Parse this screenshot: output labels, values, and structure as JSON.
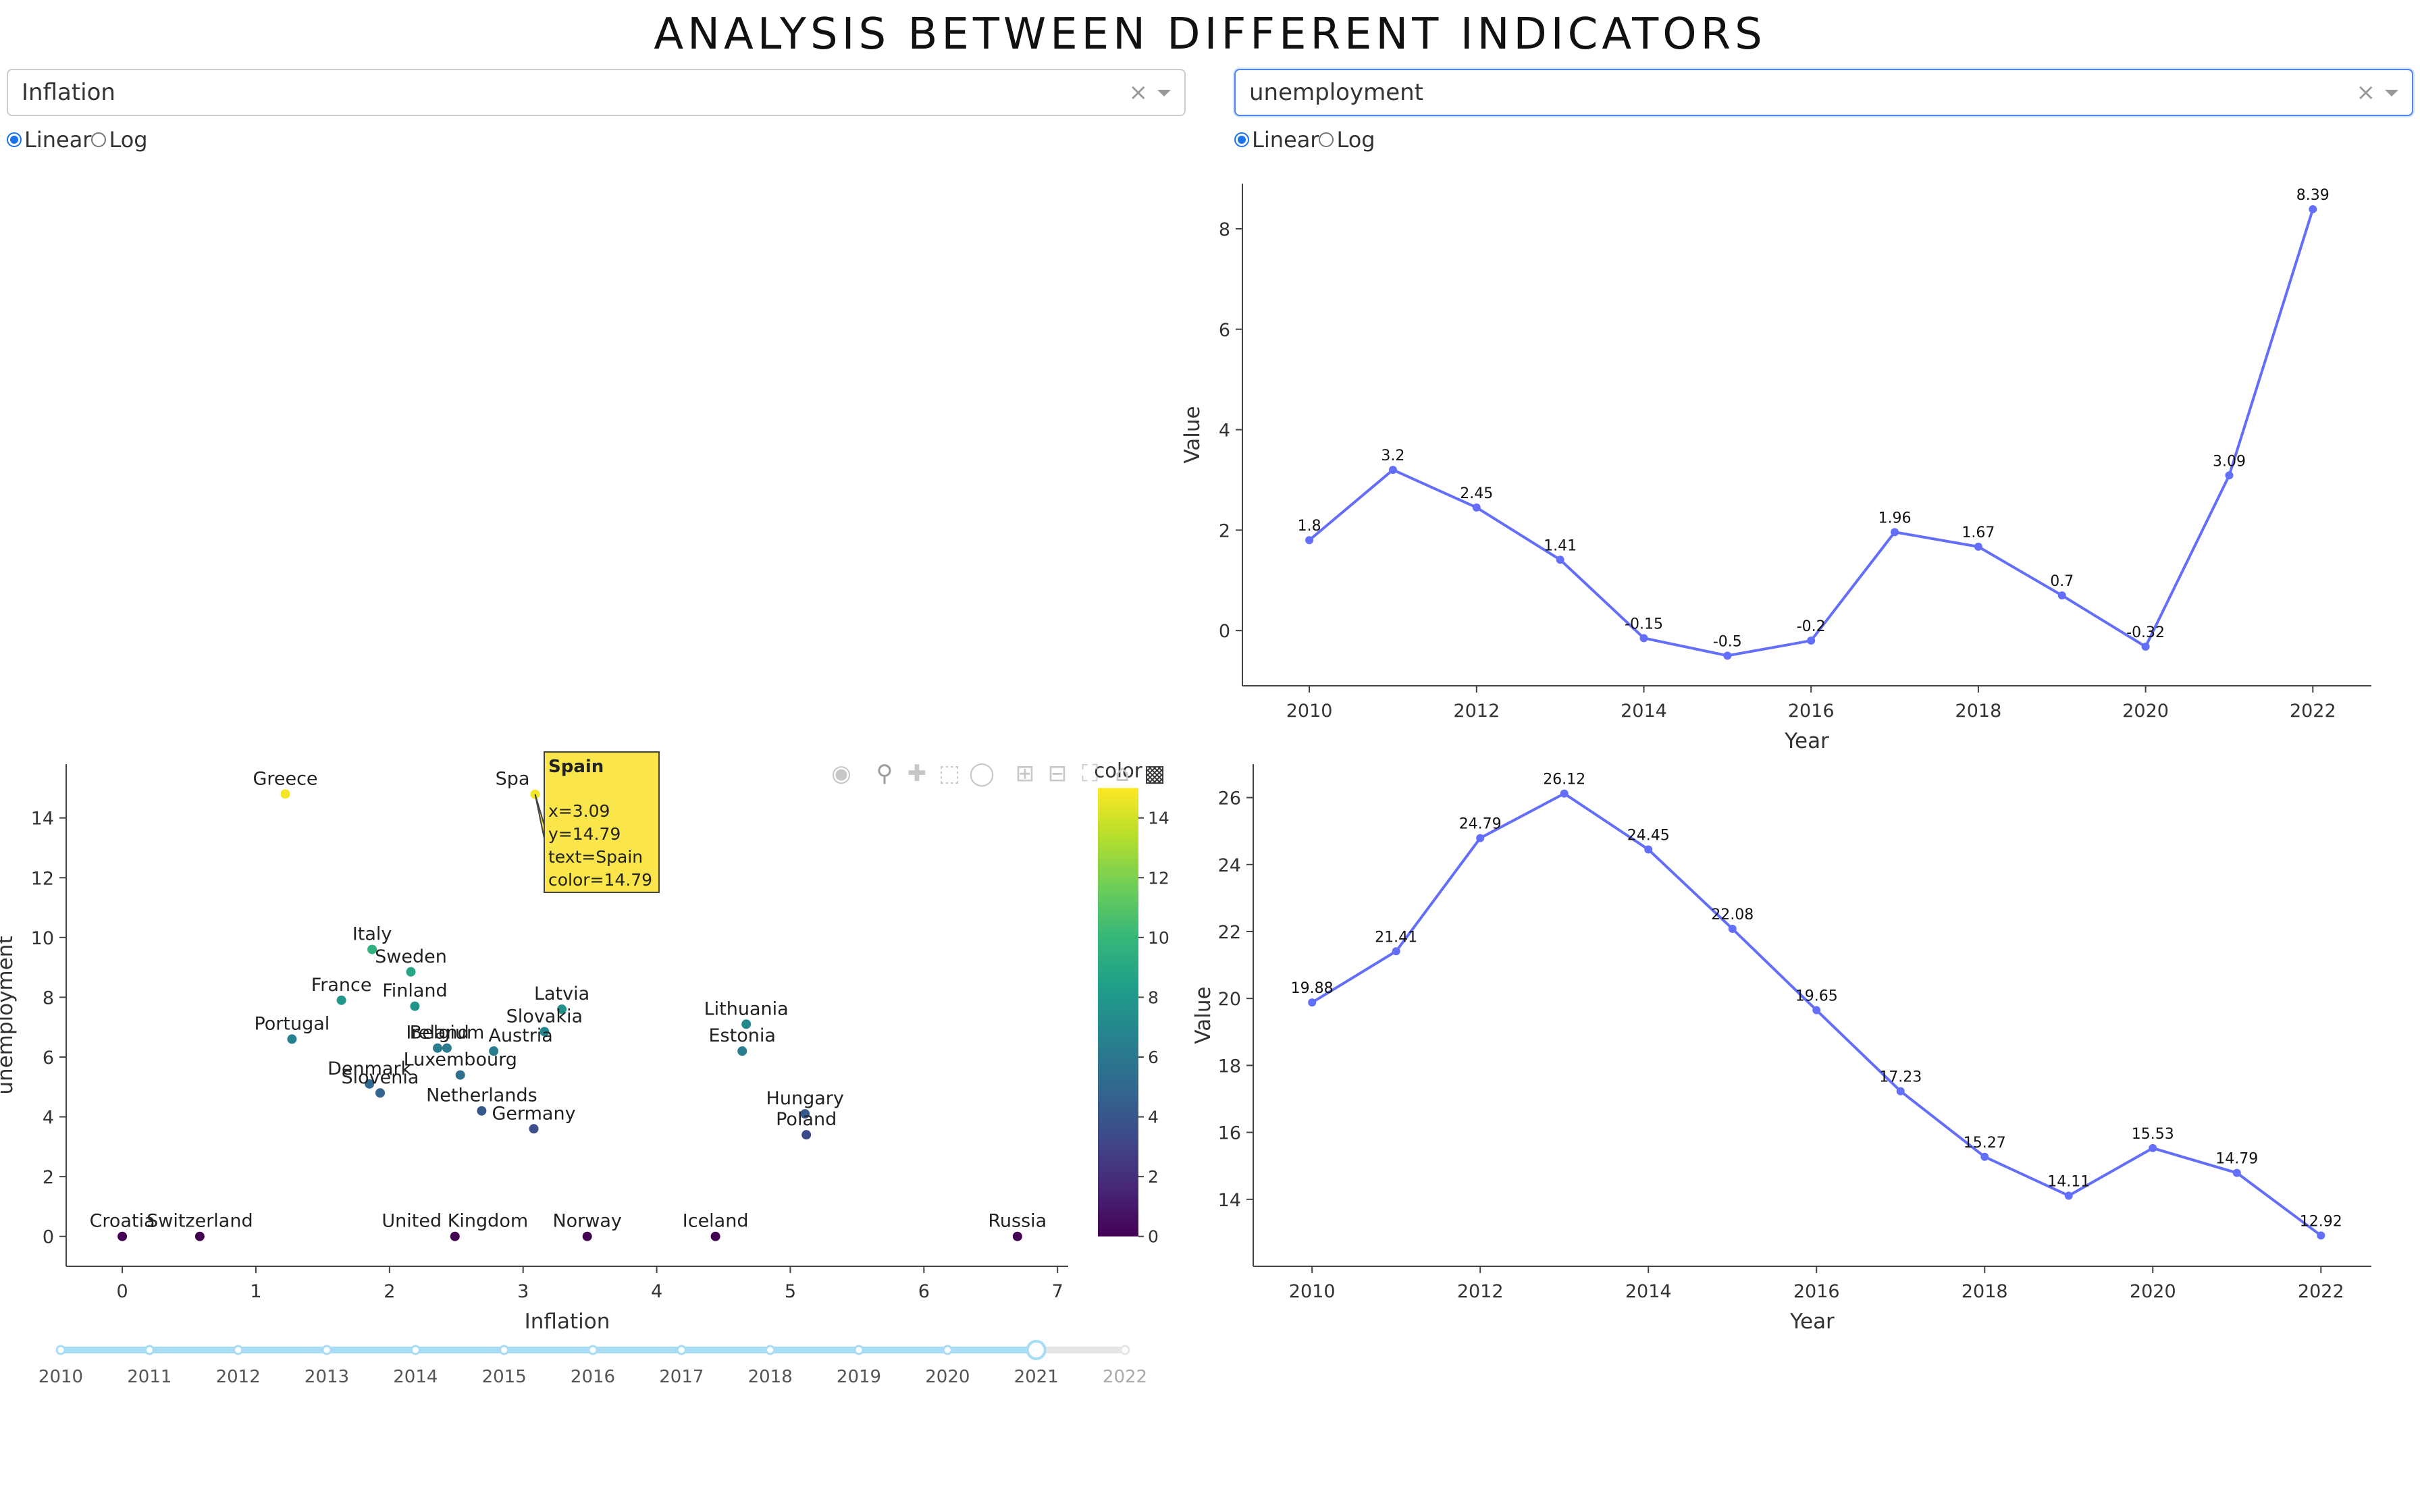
{
  "header": {
    "title": "ANALYSIS BETWEEN DIFFERENT INDICATORS"
  },
  "left_dropdown": {
    "value": "Inflation",
    "clear": "×"
  },
  "right_dropdown": {
    "value": "unemployment",
    "clear": "×"
  },
  "left_scale": {
    "options": [
      "Linear",
      "Log"
    ],
    "selected": "Linear"
  },
  "right_scale": {
    "options": [
      "Linear",
      "Log"
    ],
    "selected": "Linear"
  },
  "modebar": {
    "icons": [
      "camera-icon",
      "zoom-icon",
      "pan-icon",
      "box-select-icon",
      "lasso-icon",
      "zoom-in-icon",
      "zoom-out-icon",
      "autoscale-icon",
      "reset-axes-icon",
      "plotly-logo-icon"
    ]
  },
  "slider": {
    "years": [
      "2010",
      "2011",
      "2012",
      "2013",
      "2014",
      "2015",
      "2016",
      "2017",
      "2018",
      "2019",
      "2020",
      "2021",
      "2022"
    ],
    "selected": "2021"
  },
  "tooltip": {
    "title": "Spain",
    "lines": [
      "x=3.09",
      "y=14.79",
      "text=Spain",
      "color=14.79"
    ]
  },
  "colors": {
    "line": "#636efa",
    "tooltip_bg": "#fae54a",
    "accent": "#1a73e8"
  },
  "chart_data": [
    {
      "id": "scatter",
      "type": "scatter",
      "xlabel": "Inflation",
      "ylabel": "unemployment",
      "xlim": [
        -0.42,
        7.08
      ],
      "ylim": [
        -1.0,
        15.8
      ],
      "xticks": [
        0,
        1,
        2,
        3,
        4,
        5,
        6,
        7
      ],
      "yticks": [
        0,
        2,
        4,
        6,
        8,
        10,
        12,
        14
      ],
      "colorbar": {
        "title": "color",
        "min": 0,
        "max": 15,
        "ticks": [
          0,
          2,
          4,
          6,
          8,
          10,
          12,
          14
        ]
      },
      "points": [
        {
          "name": "Greece",
          "x": 1.22,
          "y": 14.8
        },
        {
          "name": "Spain",
          "x": 3.09,
          "y": 14.79
        },
        {
          "name": "Italy",
          "x": 1.87,
          "y": 9.6
        },
        {
          "name": "Sweden",
          "x": 2.16,
          "y": 8.85
        },
        {
          "name": "France",
          "x": 1.64,
          "y": 7.9
        },
        {
          "name": "Finland",
          "x": 2.19,
          "y": 7.7
        },
        {
          "name": "Latvia",
          "x": 3.29,
          "y": 7.6
        },
        {
          "name": "Portugal",
          "x": 1.27,
          "y": 6.6
        },
        {
          "name": "Slovakia",
          "x": 3.16,
          "y": 6.85
        },
        {
          "name": "Ireland",
          "x": 2.36,
          "y": 6.3
        },
        {
          "name": "Belgium",
          "x": 2.43,
          "y": 6.3
        },
        {
          "name": "Austria",
          "x": 2.78,
          "y": 6.2
        },
        {
          "name": "Lithuania",
          "x": 4.67,
          "y": 7.1
        },
        {
          "name": "Estonia",
          "x": 4.64,
          "y": 6.2
        },
        {
          "name": "Luxembourg",
          "x": 2.53,
          "y": 5.4
        },
        {
          "name": "Denmark",
          "x": 1.85,
          "y": 5.1
        },
        {
          "name": "Slovenia",
          "x": 1.93,
          "y": 4.8
        },
        {
          "name": "Netherlands",
          "x": 2.69,
          "y": 4.2
        },
        {
          "name": "Germany",
          "x": 3.08,
          "y": 3.6
        },
        {
          "name": "Hungary",
          "x": 5.11,
          "y": 4.1
        },
        {
          "name": "Poland",
          "x": 5.12,
          "y": 3.4
        },
        {
          "name": "Croatia",
          "x": 0.0,
          "y": 0.0
        },
        {
          "name": "Switzerland",
          "x": 0.58,
          "y": 0.0
        },
        {
          "name": "United Kingdom",
          "x": 2.49,
          "y": 0.0
        },
        {
          "name": "Norway",
          "x": 3.48,
          "y": 0.0
        },
        {
          "name": "Iceland",
          "x": 4.44,
          "y": 0.0
        },
        {
          "name": "Russia",
          "x": 6.7,
          "y": 0.0
        }
      ]
    },
    {
      "id": "inflation_line",
      "type": "line",
      "xlabel": "Year",
      "ylabel": "Value",
      "xlim": [
        2009.2,
        2022.7
      ],
      "ylim": [
        -1.1,
        8.9
      ],
      "xticks": [
        2010,
        2012,
        2014,
        2016,
        2018,
        2020,
        2022
      ],
      "yticks": [
        0,
        2,
        4,
        6,
        8
      ],
      "x": [
        2010,
        2011,
        2012,
        2013,
        2014,
        2015,
        2016,
        2017,
        2018,
        2019,
        2020,
        2021,
        2022
      ],
      "values": [
        1.8,
        3.2,
        2.45,
        1.41,
        -0.15,
        -0.5,
        -0.2,
        1.96,
        1.67,
        0.7,
        -0.32,
        3.09,
        8.39
      ],
      "labels": [
        "1.8",
        "3.2",
        "2.45",
        "1.41",
        "-0.15",
        "-0.5",
        "-0.2",
        "1.96",
        "1.67",
        "0.7",
        "-0.32",
        "3.09",
        "8.39"
      ]
    },
    {
      "id": "unemployment_line",
      "type": "line",
      "xlabel": "Year",
      "ylabel": "Value",
      "xlim": [
        2009.3,
        2022.6
      ],
      "ylim": [
        12.0,
        27.0
      ],
      "xticks": [
        2010,
        2012,
        2014,
        2016,
        2018,
        2020,
        2022
      ],
      "yticks": [
        14,
        16,
        18,
        20,
        22,
        24,
        26
      ],
      "x": [
        2010,
        2011,
        2012,
        2013,
        2014,
        2015,
        2016,
        2017,
        2018,
        2019,
        2020,
        2021,
        2022
      ],
      "values": [
        19.88,
        21.41,
        24.79,
        26.12,
        24.45,
        22.08,
        19.65,
        17.23,
        15.27,
        14.11,
        15.53,
        14.79,
        12.92
      ],
      "labels": [
        "19.88",
        "21.41",
        "24.79",
        "26.12",
        "24.45",
        "22.08",
        "19.65",
        "17.23",
        "15.27",
        "14.11",
        "15.53",
        "14.79",
        "12.92"
      ]
    }
  ]
}
